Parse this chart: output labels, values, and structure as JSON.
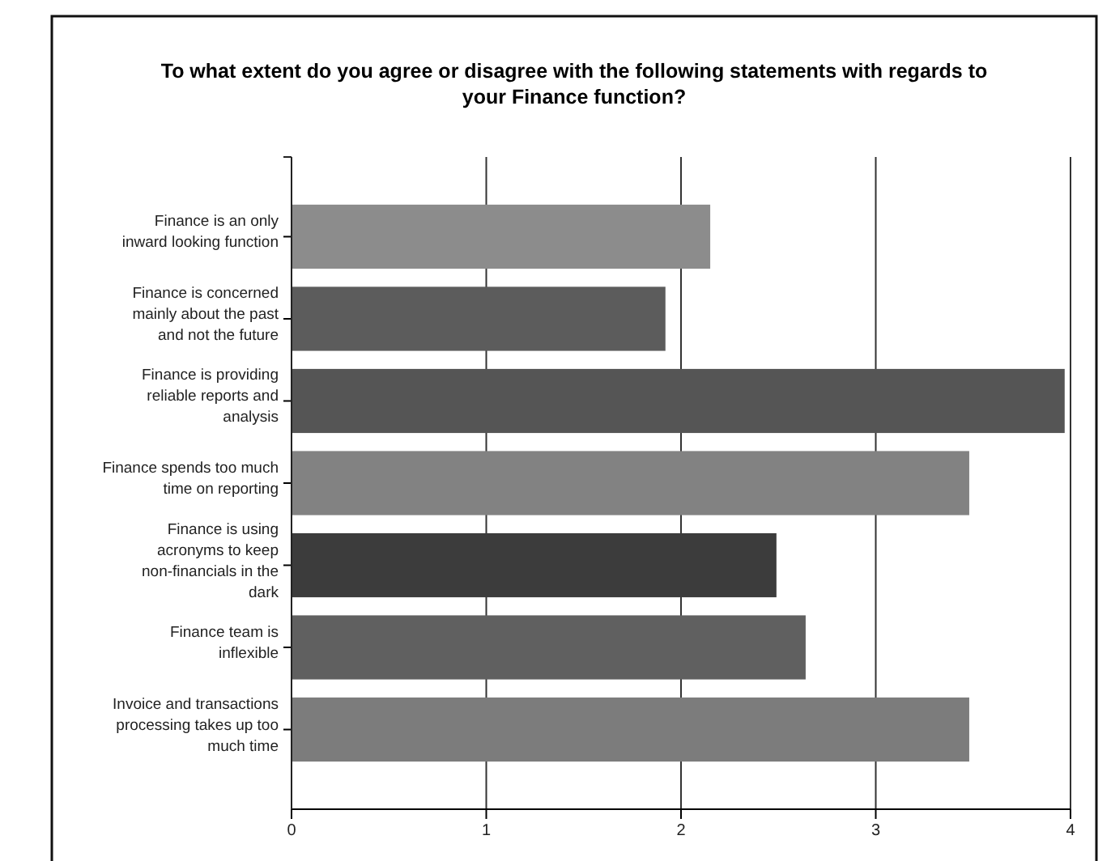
{
  "chart_data": {
    "type": "bar",
    "orientation": "horizontal",
    "title": "To what extent do you agree or disagree with the following statements with regards to your Finance function?",
    "categories": [
      "Finance is an only inward looking function",
      "Finance is concerned mainly about the past and not the future",
      "Finance is providing reliable reports and analysis",
      "Finance spends too much time on reporting",
      "Finance is using acronyms to keep non-financials in the dark",
      "Finance team is inflexible",
      "Invoice and transactions processing takes up too much time"
    ],
    "values": [
      2.15,
      1.92,
      3.97,
      3.48,
      2.49,
      2.64,
      3.48
    ],
    "colors": [
      "#8c8c8c",
      "#5c5c5c",
      "#555555",
      "#828282",
      "#3c3c3c",
      "#606060",
      "#7c7c7c"
    ],
    "xlim": [
      0,
      4
    ],
    "xticks": [
      0,
      1,
      2,
      3,
      4
    ],
    "grid": "x"
  }
}
